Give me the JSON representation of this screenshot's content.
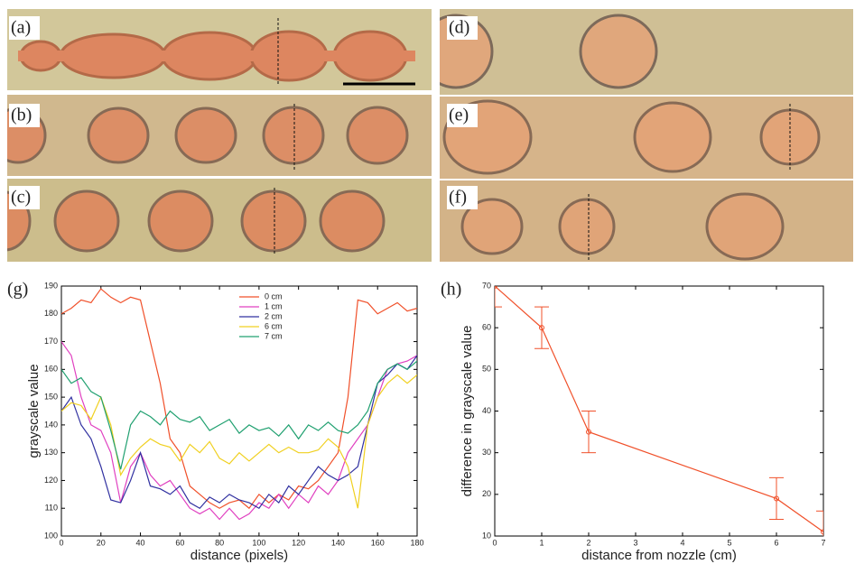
{
  "panel_labels": [
    "(a)",
    "(b)",
    "(c)",
    "(d)",
    "(e)",
    "(f)",
    "(g)",
    "(h)"
  ],
  "chart_data": [
    {
      "type": "line",
      "x_label": "distance (pixels)",
      "y_label": "grayscale value",
      "x": [
        0,
        5,
        10,
        15,
        20,
        25,
        30,
        35,
        40,
        45,
        50,
        55,
        60,
        65,
        70,
        75,
        80,
        85,
        90,
        95,
        100,
        105,
        110,
        115,
        120,
        125,
        130,
        135,
        140,
        145,
        150,
        155,
        160,
        165,
        170,
        175,
        180
      ],
      "xlim": [
        0,
        180
      ],
      "xticks": [
        0,
        20,
        40,
        60,
        80,
        100,
        120,
        140,
        160,
        180
      ],
      "ylim": [
        100,
        190
      ],
      "yticks": [
        100,
        110,
        120,
        130,
        140,
        150,
        160,
        170,
        180,
        190
      ],
      "legend": "upper center",
      "series": [
        {
          "name": "0 cm",
          "color": "#f0502a",
          "values": [
            180,
            182,
            185,
            184,
            189,
            186,
            184,
            186,
            185,
            170,
            155,
            135,
            130,
            118,
            115,
            112,
            110,
            112,
            113,
            110,
            115,
            112,
            115,
            113,
            118,
            117,
            120,
            125,
            130,
            150,
            185,
            184,
            180,
            182,
            184,
            181,
            182
          ]
        },
        {
          "name": "1 cm",
          "color": "#e040c0",
          "values": [
            170,
            165,
            150,
            140,
            138,
            130,
            112,
            125,
            130,
            122,
            118,
            120,
            115,
            110,
            108,
            110,
            106,
            110,
            106,
            108,
            112,
            110,
            115,
            110,
            115,
            112,
            118,
            115,
            120,
            130,
            135,
            140,
            150,
            160,
            162,
            163,
            165
          ]
        },
        {
          "name": "2 cm",
          "color": "#3030a0",
          "values": [
            145,
            150,
            140,
            135,
            125,
            113,
            112,
            120,
            130,
            118,
            117,
            115,
            118,
            112,
            110,
            114,
            112,
            115,
            113,
            112,
            110,
            115,
            112,
            118,
            115,
            120,
            125,
            122,
            120,
            122,
            125,
            140,
            155,
            158,
            162,
            160,
            165
          ]
        },
        {
          "name": "6 cm",
          "color": "#f0d020",
          "values": [
            145,
            148,
            147,
            142,
            150,
            140,
            122,
            128,
            132,
            135,
            133,
            132,
            127,
            133,
            130,
            134,
            128,
            126,
            130,
            127,
            130,
            133,
            130,
            132,
            130,
            130,
            131,
            135,
            132,
            125,
            110,
            140,
            150,
            155,
            158,
            155,
            158
          ]
        },
        {
          "name": "7 cm",
          "color": "#20a070",
          "values": [
            160,
            155,
            157,
            152,
            150,
            138,
            124,
            140,
            145,
            143,
            140,
            145,
            142,
            141,
            143,
            138,
            140,
            142,
            137,
            140,
            138,
            139,
            136,
            140,
            135,
            140,
            138,
            141,
            138,
            137,
            140,
            145,
            155,
            160,
            162,
            160,
            163
          ]
        }
      ]
    },
    {
      "type": "errorline",
      "x_label": "distance from nozzle (cm)",
      "y_label": "difference in grayscale value",
      "x": [
        0,
        1,
        2,
        6,
        7
      ],
      "values": [
        70,
        60,
        35,
        19,
        11
      ],
      "errors": [
        5,
        5,
        5,
        5,
        5
      ],
      "color": "#f0502a",
      "xlim": [
        0,
        7
      ],
      "xticks": [
        0,
        1,
        2,
        3,
        4,
        5,
        6,
        7
      ],
      "ylim": [
        10,
        70
      ],
      "yticks": [
        10,
        20,
        30,
        40,
        50,
        60,
        70
      ]
    }
  ]
}
